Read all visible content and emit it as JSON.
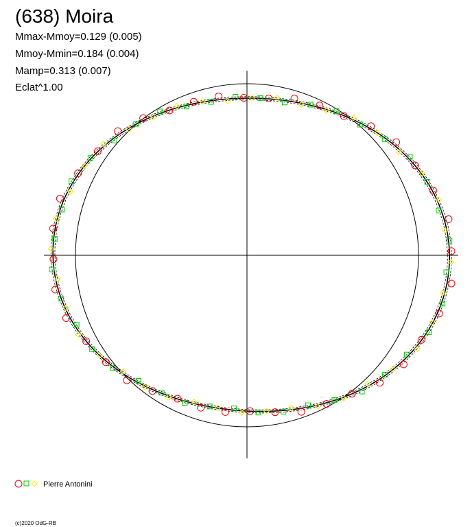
{
  "header": {
    "title": "(638) Moira",
    "lines": [
      "Mmax-Mmoy=0.129 (0.005)",
      "Mmoy-Mmin=0.184 (0.004)",
      "Mamp=0.313 (0.007)",
      "Eclat^1.00"
    ]
  },
  "legend": {
    "observer": "Pierre Antonini"
  },
  "footer": {
    "credit": "(c)2020 OdG-RB"
  }
}
